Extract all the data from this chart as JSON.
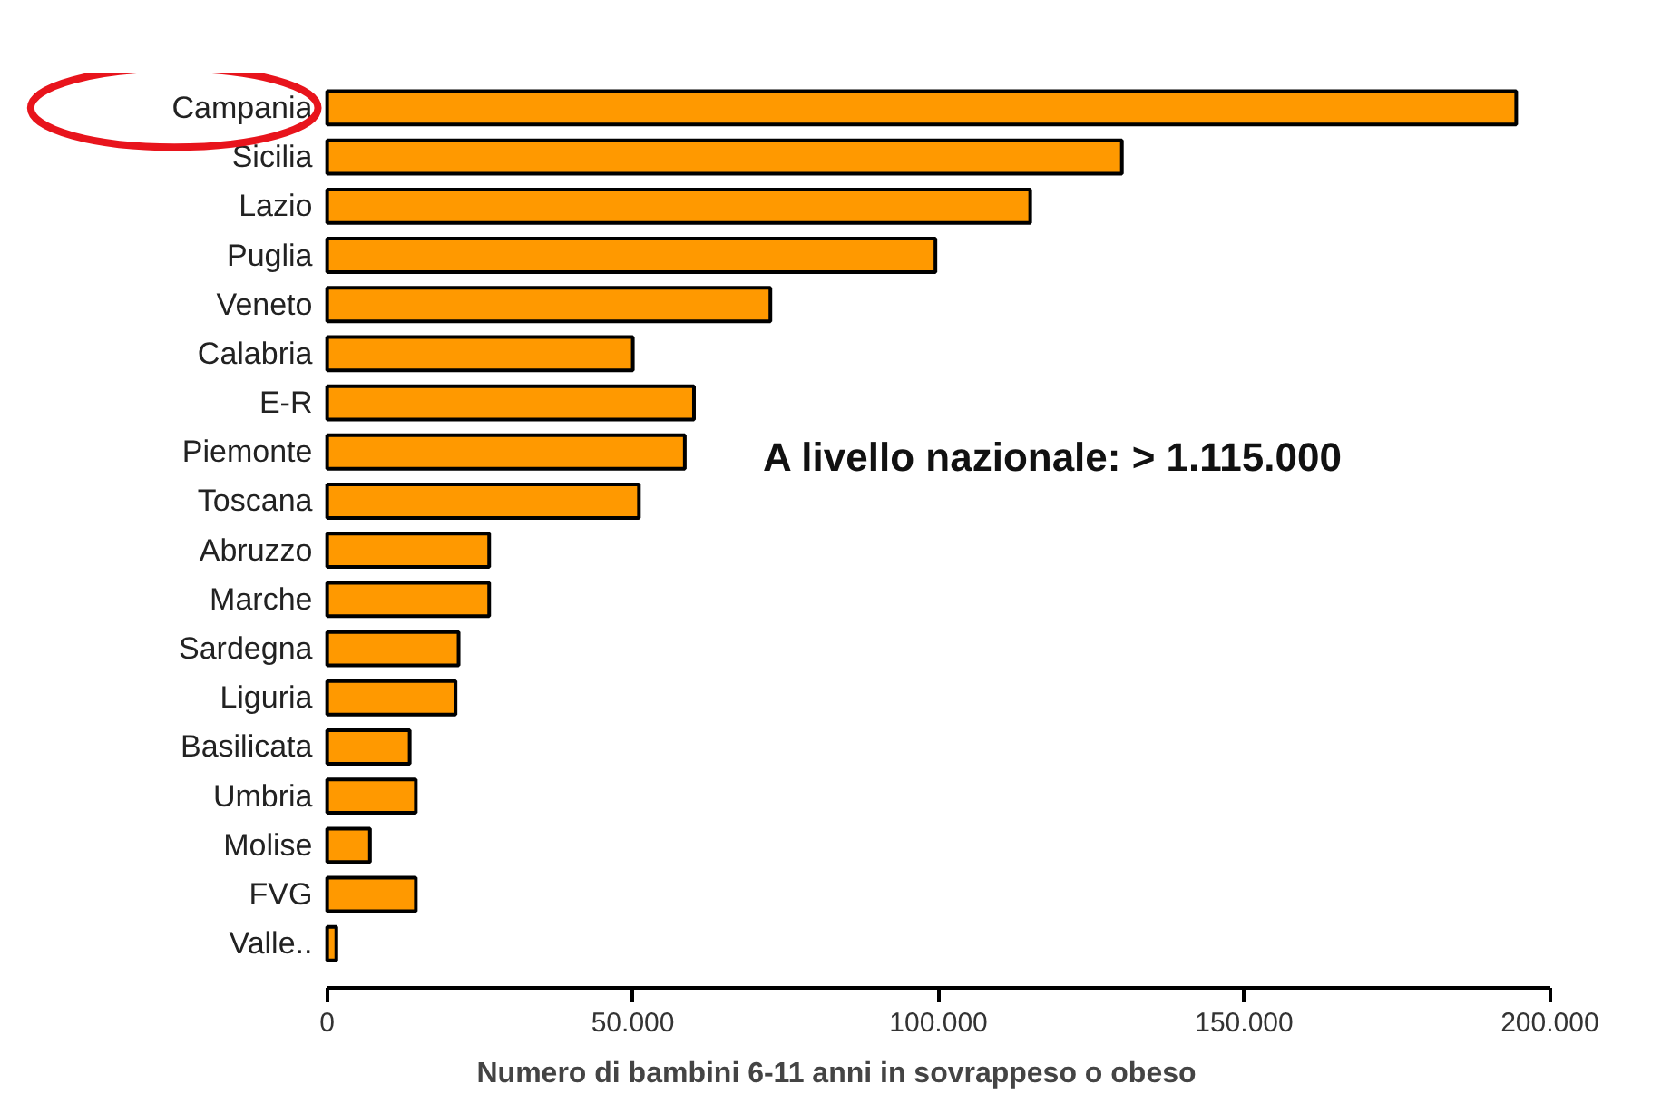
{
  "chart_data": {
    "type": "bar",
    "orientation": "horizontal",
    "xlabel": "Numero di bambini 6-11 anni in sovrappeso o obeso",
    "categories": [
      "Campania",
      "Sicilia",
      "Lazio",
      "Puglia",
      "Veneto",
      "Calabria",
      "E-R",
      "Piemonte",
      "Toscana",
      "Abruzzo",
      "Marche",
      "Sardegna",
      "Liguria",
      "Basilicata",
      "Umbria",
      "Molise",
      "FVG",
      "Valle.."
    ],
    "values": [
      194500,
      130000,
      115000,
      99500,
      72500,
      50000,
      60000,
      58500,
      51000,
      26500,
      26500,
      21500,
      21000,
      13500,
      14500,
      7000,
      14500,
      1500
    ],
    "color": "#ff9900",
    "xlim": [
      0,
      200000
    ],
    "xticks": [
      {
        "value": 0,
        "label": "0"
      },
      {
        "value": 50000,
        "label": "50.000"
      },
      {
        "value": 100000,
        "label": "100.000"
      },
      {
        "value": 150000,
        "label": "150.000"
      },
      {
        "value": 200000,
        "label": "200.000"
      }
    ],
    "grid": false,
    "annotations": [
      "A livello nazionale: > 1.115.000"
    ]
  }
}
